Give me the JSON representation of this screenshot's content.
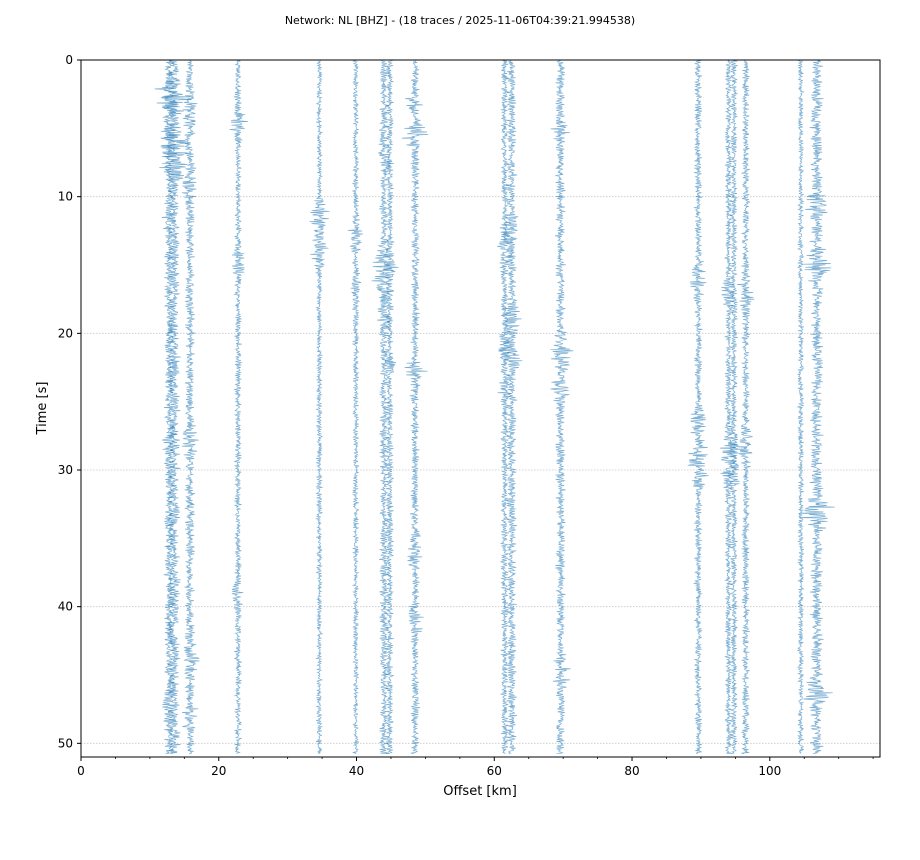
{
  "chart_data": {
    "type": "seismic_record_section",
    "title": "Network: NL [BHZ] - (18 traces / 2025-11-06T04:39:21.994538)",
    "xlabel": "Offset [km]",
    "ylabel": "Time [s]",
    "xlim": [
      0,
      116
    ],
    "ylim": [
      51,
      0
    ],
    "y_inverted": true,
    "xticks": [
      0,
      20,
      40,
      60,
      80,
      100
    ],
    "xtick_labels": [
      "0",
      "20",
      "40",
      "60",
      "80",
      "100"
    ],
    "yticks": [
      0,
      10,
      20,
      30,
      40,
      50
    ],
    "ytick_labels": [
      "0",
      "10",
      "20",
      "30",
      "40",
      "50"
    ],
    "grid": "horizontal",
    "trace_color": "#1f77b4",
    "traces": [
      {
        "offset_km": 12.8,
        "amplitude": 1.0,
        "bursts": [
          [
            3,
            1.8
          ],
          [
            6,
            1.6
          ],
          [
            12,
            1.1
          ],
          [
            27.5,
            1.3
          ],
          [
            47.5,
            1.1
          ]
        ]
      },
      {
        "offset_km": 13.5,
        "amplitude": 1.3,
        "bursts": [
          [
            2.5,
            2.5
          ],
          [
            6,
            2.0
          ],
          [
            8,
            1.6
          ]
        ]
      },
      {
        "offset_km": 15.8,
        "amplitude": 1.0,
        "bursts": [
          [
            4,
            1.4
          ],
          [
            9,
            1.2
          ],
          [
            28,
            1.3
          ],
          [
            44,
            1.5
          ],
          [
            48,
            1.3
          ]
        ]
      },
      {
        "offset_km": 22.8,
        "amplitude": 0.7,
        "bursts": [
          [
            4.5,
            2.3
          ],
          [
            15,
            1.8
          ],
          [
            39,
            1.6
          ]
        ]
      },
      {
        "offset_km": 34.6,
        "amplitude": 0.6,
        "bursts": [
          [
            11.5,
            3.2
          ],
          [
            14,
            2.4
          ]
        ]
      },
      {
        "offset_km": 39.9,
        "amplitude": 0.6,
        "bursts": [
          [
            13,
            3.0
          ],
          [
            16.5,
            1.6
          ]
        ]
      },
      {
        "offset_km": 44.0,
        "amplitude": 0.9,
        "bursts": [
          [
            7.5,
            1.6
          ],
          [
            14.5,
            1.9
          ],
          [
            16.5,
            2.1
          ],
          [
            19,
            1.4
          ]
        ]
      },
      {
        "offset_km": 44.8,
        "amplitude": 0.8,
        "bursts": [
          [
            15,
            1.6
          ],
          [
            22,
            1.3
          ]
        ]
      },
      {
        "offset_km": 48.5,
        "amplitude": 0.9,
        "bursts": [
          [
            3,
            1.7
          ],
          [
            5.5,
            2.2
          ],
          [
            23,
            2.2
          ],
          [
            36,
            1.7
          ],
          [
            41,
            1.3
          ]
        ]
      },
      {
        "offset_km": 61.5,
        "amplitude": 0.8,
        "bursts": [
          [
            14,
            1.6
          ],
          [
            21,
            2.0
          ],
          [
            24,
            1.4
          ]
        ]
      },
      {
        "offset_km": 62.5,
        "amplitude": 1.0,
        "bursts": [
          [
            12.5,
            1.4
          ],
          [
            19,
            1.8
          ],
          [
            21.5,
            2.0
          ]
        ]
      },
      {
        "offset_km": 69.6,
        "amplitude": 1.0,
        "bursts": [
          [
            5,
            1.3
          ],
          [
            21.5,
            2.5
          ],
          [
            24,
            1.6
          ],
          [
            45,
            1.6
          ]
        ]
      },
      {
        "offset_km": 89.6,
        "amplitude": 0.8,
        "bursts": [
          [
            16,
            1.8
          ],
          [
            26.5,
            1.9
          ],
          [
            29,
            2.4
          ],
          [
            30.5,
            1.7
          ]
        ]
      },
      {
        "offset_km": 94.0,
        "amplitude": 0.7,
        "bursts": [
          [
            17,
            1.7
          ],
          [
            28.5,
            2.2
          ],
          [
            30,
            1.9
          ]
        ]
      },
      {
        "offset_km": 94.8,
        "amplitude": 0.7,
        "bursts": [
          [
            28,
            1.7
          ],
          [
            30.5,
            1.5
          ]
        ]
      },
      {
        "offset_km": 96.5,
        "amplitude": 0.8,
        "bursts": [
          [
            17,
            1.8
          ],
          [
            28,
            2.5
          ]
        ]
      },
      {
        "offset_km": 104.5,
        "amplitude": 0.6,
        "bursts": []
      },
      {
        "offset_km": 106.8,
        "amplitude": 1.3,
        "bursts": [
          [
            10.5,
            2.0
          ],
          [
            15,
            1.8
          ],
          [
            33,
            2.2
          ],
          [
            46.5,
            1.7
          ]
        ]
      }
    ]
  }
}
